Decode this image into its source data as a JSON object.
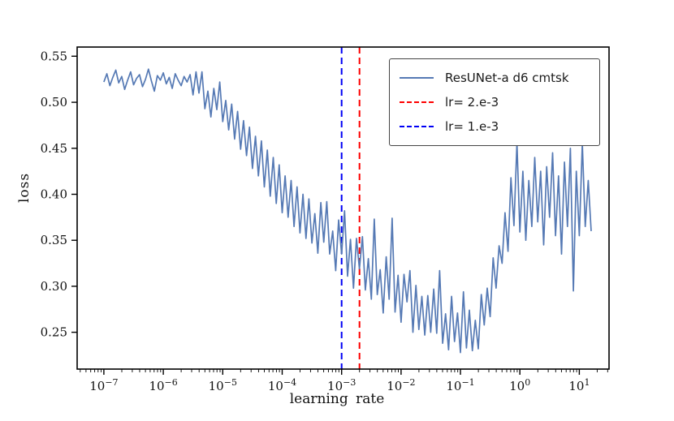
{
  "chart_data": {
    "type": "line",
    "title": "",
    "xlabel": "learning rate",
    "ylabel": "loss",
    "x_axis": {
      "scale": "log10",
      "lim_log10": [
        -7.45,
        1.5
      ],
      "tick_exponents": [
        -7,
        -6,
        -5,
        -4,
        -3,
        -2,
        -1,
        0,
        1
      ]
    },
    "y_axis": {
      "lim": [
        0.21,
        0.56
      ],
      "ticks": [
        0.25,
        0.3,
        0.35,
        0.4,
        0.45,
        0.5,
        0.55
      ]
    },
    "grid": false,
    "legend_position": "upper right",
    "series": [
      {
        "name": "ResUNet-a d6 cmtsk",
        "color": "#5579b4",
        "x_log10_start": -7.0,
        "x_log10_step": 0.05,
        "values": [
          0.522,
          0.531,
          0.518,
          0.527,
          0.535,
          0.521,
          0.528,
          0.514,
          0.524,
          0.533,
          0.519,
          0.526,
          0.53,
          0.517,
          0.525,
          0.536,
          0.523,
          0.512,
          0.529,
          0.524,
          0.532,
          0.52,
          0.527,
          0.515,
          0.531,
          0.524,
          0.518,
          0.528,
          0.522,
          0.53,
          0.508,
          0.533,
          0.51,
          0.533,
          0.493,
          0.512,
          0.484,
          0.515,
          0.492,
          0.522,
          0.479,
          0.502,
          0.47,
          0.498,
          0.46,
          0.49,
          0.449,
          0.48,
          0.442,
          0.473,
          0.428,
          0.463,
          0.42,
          0.458,
          0.408,
          0.448,
          0.398,
          0.44,
          0.39,
          0.432,
          0.38,
          0.42,
          0.375,
          0.415,
          0.365,
          0.408,
          0.358,
          0.4,
          0.352,
          0.395,
          0.347,
          0.379,
          0.336,
          0.391,
          0.348,
          0.392,
          0.335,
          0.36,
          0.317,
          0.372,
          0.335,
          0.382,
          0.311,
          0.351,
          0.298,
          0.352,
          0.319,
          0.354,
          0.296,
          0.33,
          0.286,
          0.373,
          0.291,
          0.318,
          0.271,
          0.332,
          0.286,
          0.374,
          0.272,
          0.312,
          0.261,
          0.313,
          0.283,
          0.317,
          0.25,
          0.301,
          0.253,
          0.289,
          0.247,
          0.29,
          0.25,
          0.297,
          0.249,
          0.317,
          0.238,
          0.27,
          0.231,
          0.289,
          0.24,
          0.271,
          0.228,
          0.294,
          0.233,
          0.274,
          0.23,
          0.263,
          0.232,
          0.291,
          0.258,
          0.298,
          0.267,
          0.331,
          0.298,
          0.344,
          0.325,
          0.38,
          0.338,
          0.418,
          0.366,
          0.456,
          0.359,
          0.425,
          0.35,
          0.415,
          0.365,
          0.44,
          0.37,
          0.425,
          0.345,
          0.43,
          0.375,
          0.445,
          0.355,
          0.42,
          0.335,
          0.435,
          0.365,
          0.45,
          0.295,
          0.425,
          0.355,
          0.455,
          0.365,
          0.415,
          0.36
        ]
      }
    ],
    "vlines": [
      {
        "label": "lr= 2.e-3",
        "x_log10": -2.699,
        "color": "#fe0000",
        "style": "dashed"
      },
      {
        "label": "lr= 1.e-3",
        "x_log10": -3.0,
        "color": "#0000f5",
        "style": "dashed"
      }
    ]
  },
  "legend": {
    "items": [
      {
        "label": "ResUNet-a d6 cmtsk",
        "sample": "solid-blue-line"
      },
      {
        "label": "lr= 2.e-3",
        "sample": "dashed-red-line"
      },
      {
        "label": "lr= 1.e-3",
        "sample": "dashed-blue-line"
      }
    ]
  },
  "colors": {
    "series_line": "#5579b4",
    "vline_red": "#fe0000",
    "vline_blue": "#0000f5",
    "axis": "#000000",
    "background": "#ffffff"
  }
}
